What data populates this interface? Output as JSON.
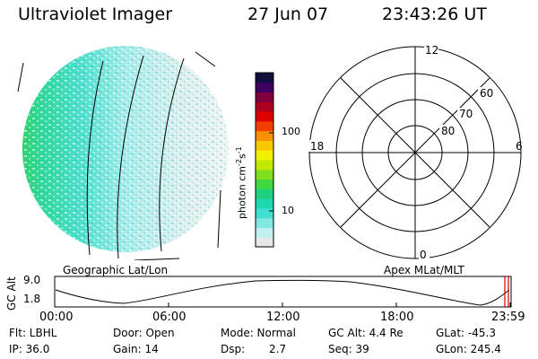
{
  "header": {
    "instrument": "Ultraviolet Imager",
    "date": "27 Jun 07",
    "time": "23:43:26 UT"
  },
  "colorbar": {
    "unit_label": "photon cm",
    "unit_exp1": "-2",
    "unit_mid": "s",
    "unit_exp2": "-1",
    "ticks": [
      {
        "label": "100",
        "value": 100
      },
      {
        "label": "10",
        "value": 10
      }
    ],
    "colors": [
      "#e8e8e8",
      "#c0f0f0",
      "#80e8e0",
      "#40e0d0",
      "#20d8b0",
      "#20d080",
      "#40d840",
      "#80e020",
      "#c0e800",
      "#f0f000",
      "#f8c800",
      "#f89000",
      "#f04000",
      "#e00000",
      "#b00020",
      "#800040",
      "#400060",
      "#101040"
    ]
  },
  "polar": {
    "mlt_labels": [
      "12",
      "18",
      "6",
      "0"
    ],
    "lat_labels": [
      "60",
      "70",
      "80"
    ]
  },
  "orbit": {
    "left_caption": "Geographic Lat/Lon",
    "right_caption": "Apex MLat/MLT",
    "ylabel": "GC Alt",
    "ytick_top": "9.0",
    "ytick_bottom": "1.8",
    "time_ticks": [
      "00:00",
      "06:00",
      "12:00",
      "18:00",
      "23:59"
    ],
    "marker_color": "#d00000"
  },
  "status": {
    "filter": "Flt: LBHL",
    "door": "Door: Open",
    "mode": "Mode: Normal",
    "gc_alt": "GC Alt: 4.4 Re",
    "glat": "GLat: -45.3",
    "ip": "IP: 36.0",
    "gain": "Gain: 14",
    "dsp_label": "Dsp:",
    "dsp_value": "2.7",
    "seq": "Seq: 39",
    "glon": "GLon: 245.4"
  }
}
